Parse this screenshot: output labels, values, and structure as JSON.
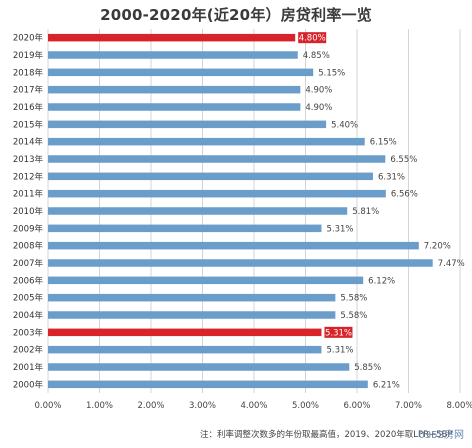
{
  "chart_data": {
    "type": "bar",
    "orientation": "horizontal",
    "title": "2000-2020年(近20年）房贷利率一览",
    "categories": [
      "2020年",
      "2019年",
      "2018年",
      "2017年",
      "2016年",
      "2015年",
      "2014年",
      "2013年",
      "2012年",
      "2011年",
      "2010年",
      "2009年",
      "2008年",
      "2007年",
      "2006年",
      "2005年",
      "2004年",
      "2003年",
      "2002年",
      "2001年",
      "2000年"
    ],
    "values": [
      4.8,
      4.85,
      5.15,
      4.9,
      4.9,
      5.4,
      6.15,
      6.55,
      6.31,
      6.56,
      5.81,
      5.31,
      7.2,
      7.47,
      6.12,
      5.58,
      5.58,
      5.31,
      5.31,
      5.85,
      6.21
    ],
    "value_labels": [
      "4.80%",
      "4.85%",
      "5.15%",
      "4.90%",
      "4.90%",
      "5.40%",
      "6.15%",
      "6.55%",
      "6.31%",
      "6.56%",
      "5.81%",
      "5.31%",
      "7.20%",
      "7.47%",
      "6.12%",
      "5.58%",
      "5.58%",
      "5.31%",
      "5.31%",
      "5.85%",
      "6.21%"
    ],
    "highlighted": [
      "2020年",
      "2003年"
    ],
    "xlim": [
      0,
      8
    ],
    "x_ticks": [
      "0.00%",
      "1.00%",
      "2.00%",
      "3.00%",
      "4.00%",
      "5.00%",
      "6.00%",
      "7.00%",
      "8.00%"
    ],
    "grid": "vertical",
    "xlabel": "",
    "ylabel": "",
    "colors": {
      "bar": "#6a9dc9",
      "highlight": "#d9232a",
      "highlight_label_bg": "#d9232a",
      "grid": "#d4d4d4"
    }
  },
  "footnote": "注：利率调整次数多的年份取最高值，2019、2020年取LPR+5BP",
  "watermark": "0352房网"
}
